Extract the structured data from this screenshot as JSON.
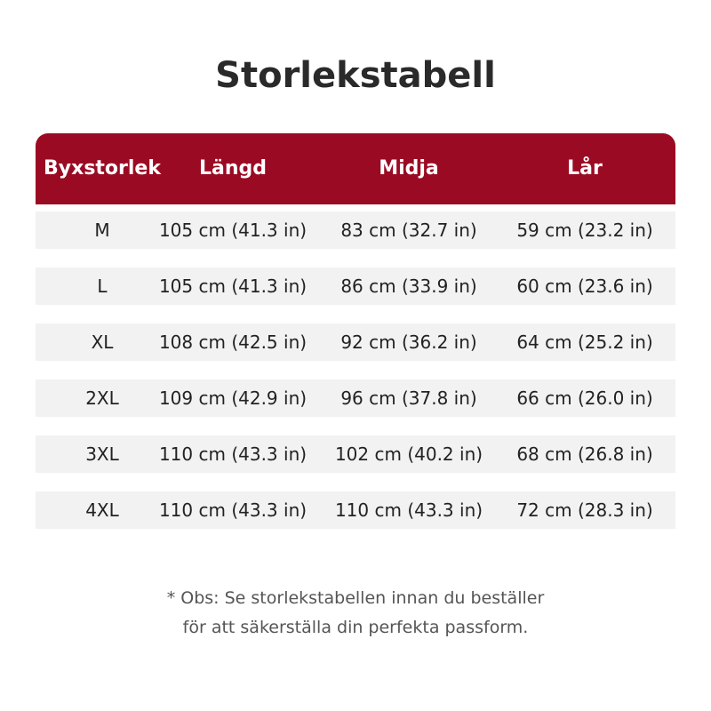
{
  "header": {
    "title": "Storlekstabell"
  },
  "table": {
    "columns": [
      "Byxstorlek",
      "Längd",
      "Midja",
      "Lår"
    ],
    "rows": [
      [
        "M",
        "105 cm (41.3 in)",
        "83 cm (32.7 in)",
        "59 cm (23.2 in)"
      ],
      [
        "L",
        "105 cm (41.3 in)",
        "86 cm (33.9 in)",
        "60 cm (23.6 in)"
      ],
      [
        "XL",
        "108 cm (42.5 in)",
        "92 cm (36.2 in)",
        "64 cm (25.2 in)"
      ],
      [
        "2XL",
        "109 cm (42.9 in)",
        "96 cm (37.8 in)",
        "66 cm (26.0 in)"
      ],
      [
        "3XL",
        "110 cm (43.3 in)",
        "102 cm (40.2 in)",
        "68 cm (26.8 in)"
      ],
      [
        "4XL",
        "110 cm (43.3 in)",
        "110 cm (43.3 in)",
        "72 cm (28.3 in)"
      ]
    ]
  },
  "note": {
    "lines": [
      "* Obs: Se storlekstabellen innan du beställer",
      "för att säkerställa din perfekta passform."
    ]
  }
}
